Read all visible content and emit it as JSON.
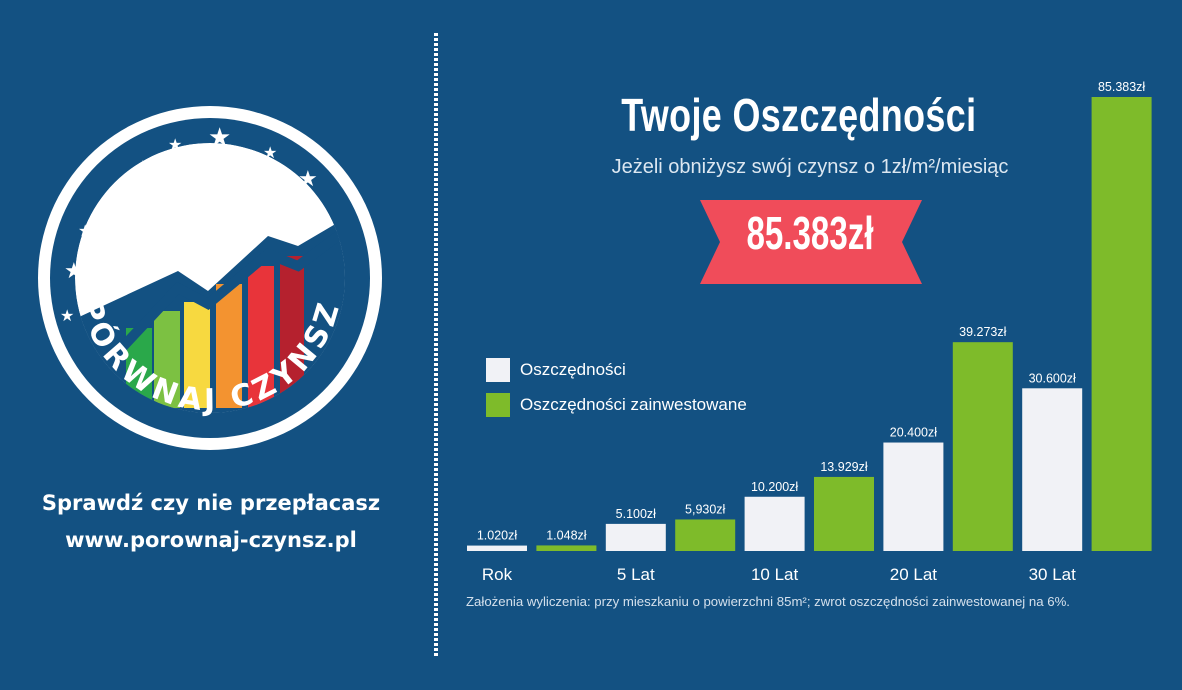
{
  "brand": {
    "logo_text": "PÓRWNAJ CZYNSZ",
    "tagline_1": "Sprawdź czy nie przepłacasz",
    "tagline_2": "www.porownaj-czynsz.pl"
  },
  "colors": {
    "background": "#135182",
    "savings": "#f1f2f6",
    "invested": "#7ebb2a",
    "ribbon": "#f04c5a"
  },
  "header": {
    "title": "Twoje Oszczędności",
    "subtitle": "Jeżeli obniżysz swój czynsz o 1zł/m²/miesiąc",
    "highlight": "85.383zł"
  },
  "legend": [
    {
      "label": "Oszczędności",
      "color": "#f1f2f6"
    },
    {
      "label": "Oszczędności zainwestowane",
      "color": "#7ebb2a"
    }
  ],
  "footnote": "Założenia wyliczenia: przy mieszkaniu o powierzchni 85m²; zwrot oszczędności zainwestowanej na 6%.",
  "chart_data": {
    "type": "bar",
    "categories": [
      "Rok",
      "5 Lat",
      "10 Lat",
      "20 Lat",
      "30 Lat"
    ],
    "series": [
      {
        "name": "Oszczędności",
        "values": [
          1020,
          5100,
          10200,
          20400,
          30600
        ],
        "labels": [
          "1.020zł",
          "5.100zł",
          "10.200zł",
          "20.400zł",
          "30.600zł"
        ],
        "color": "#f1f2f6"
      },
      {
        "name": "Oszczędności zainwestowane",
        "values": [
          1048,
          5930,
          13929,
          39273,
          85383
        ],
        "labels": [
          "1.048zł",
          "5,930zł",
          "13.929zł",
          "39.273zł",
          "85.383zł"
        ],
        "color": "#7ebb2a"
      }
    ],
    "ylim": [
      0,
      85383
    ],
    "grid": false,
    "legend_position": "left"
  }
}
